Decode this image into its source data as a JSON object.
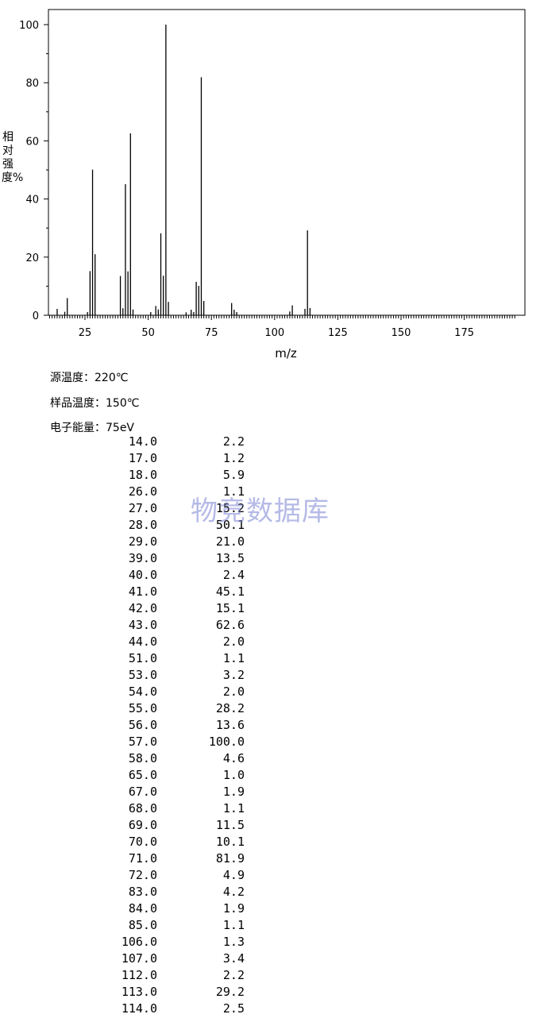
{
  "chart_data": {
    "type": "bar",
    "xlabel": "m/z",
    "ylabel": "相对强度%",
    "xlim": [
      10,
      196
    ],
    "ylim": [
      0,
      105
    ],
    "xticks": [
      25,
      50,
      75,
      100,
      125,
      150,
      175
    ],
    "yticks": [
      0,
      20,
      40,
      60,
      80,
      100
    ],
    "x": [
      14,
      17,
      18,
      26,
      27,
      28,
      29,
      39,
      40,
      41,
      42,
      43,
      44,
      51,
      53,
      54,
      55,
      56,
      57,
      58,
      65,
      67,
      68,
      69,
      70,
      71,
      72,
      83,
      84,
      85,
      106,
      107,
      112,
      113,
      114
    ],
    "values": [
      2.2,
      1.2,
      5.9,
      1.1,
      15.2,
      50.1,
      21.0,
      13.5,
      2.4,
      45.1,
      15.1,
      62.6,
      2.0,
      1.1,
      3.2,
      2.0,
      28.2,
      13.6,
      100.0,
      4.6,
      1.0,
      1.9,
      1.1,
      11.5,
      10.1,
      81.9,
      4.9,
      4.2,
      1.9,
      1.1,
      1.3,
      3.4,
      2.2,
      29.2,
      2.5
    ]
  },
  "meta": {
    "source_temp": "源温度：220℃",
    "sample_temp": "样品温度：150℃",
    "energy": "电子能量：75eV"
  },
  "watermark": "物竞数据库",
  "peaks": [
    {
      "mz": "14.0",
      "ab": "2.2"
    },
    {
      "mz": "17.0",
      "ab": "1.2"
    },
    {
      "mz": "18.0",
      "ab": "5.9"
    },
    {
      "mz": "26.0",
      "ab": "1.1"
    },
    {
      "mz": "27.0",
      "ab": "15.2"
    },
    {
      "mz": "28.0",
      "ab": "50.1"
    },
    {
      "mz": "29.0",
      "ab": "21.0"
    },
    {
      "mz": "39.0",
      "ab": "13.5"
    },
    {
      "mz": "40.0",
      "ab": "2.4"
    },
    {
      "mz": "41.0",
      "ab": "45.1"
    },
    {
      "mz": "42.0",
      "ab": "15.1"
    },
    {
      "mz": "43.0",
      "ab": "62.6"
    },
    {
      "mz": "44.0",
      "ab": "2.0"
    },
    {
      "mz": "51.0",
      "ab": "1.1"
    },
    {
      "mz": "53.0",
      "ab": "3.2"
    },
    {
      "mz": "54.0",
      "ab": "2.0"
    },
    {
      "mz": "55.0",
      "ab": "28.2"
    },
    {
      "mz": "56.0",
      "ab": "13.6"
    },
    {
      "mz": "57.0",
      "ab": "100.0"
    },
    {
      "mz": "58.0",
      "ab": "4.6"
    },
    {
      "mz": "65.0",
      "ab": "1.0"
    },
    {
      "mz": "67.0",
      "ab": "1.9"
    },
    {
      "mz": "68.0",
      "ab": "1.1"
    },
    {
      "mz": "69.0",
      "ab": "11.5"
    },
    {
      "mz": "70.0",
      "ab": "10.1"
    },
    {
      "mz": "71.0",
      "ab": "81.9"
    },
    {
      "mz": "72.0",
      "ab": "4.9"
    },
    {
      "mz": "83.0",
      "ab": "4.2"
    },
    {
      "mz": "84.0",
      "ab": "1.9"
    },
    {
      "mz": "85.0",
      "ab": "1.1"
    },
    {
      "mz": "106.0",
      "ab": "1.3"
    },
    {
      "mz": "107.0",
      "ab": "3.4"
    },
    {
      "mz": "112.0",
      "ab": "2.2"
    },
    {
      "mz": "113.0",
      "ab": "29.2"
    },
    {
      "mz": "114.0",
      "ab": "2.5"
    }
  ]
}
